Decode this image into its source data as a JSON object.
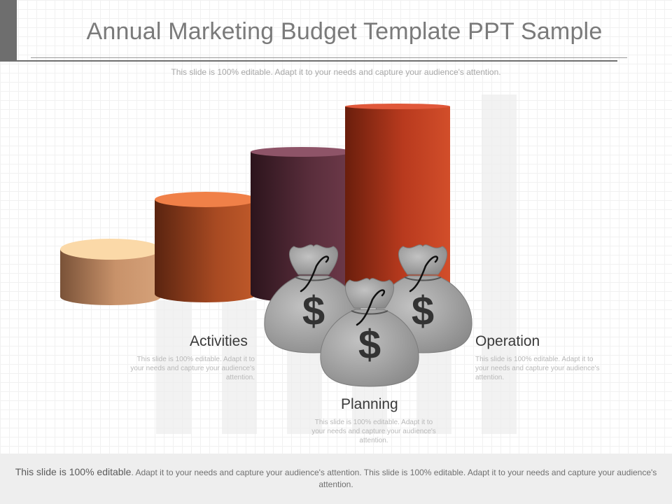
{
  "title": "Annual Marketing Budget Template PPT Sample",
  "subtitle": "This slide is 100% editable. Adapt it to your needs and capture your audience's attention.",
  "items": [
    {
      "label": "Activities",
      "text": "This slide is 100% editable. Adapt it to your needs and capture your audience's attention."
    },
    {
      "label": "Planning",
      "text": "This slide is 100% editable. Adapt it to your needs and capture your audience's attention."
    },
    {
      "label": "Operation",
      "text": "This slide is 100% editable. Adapt it to your needs and capture your audience's attention."
    }
  ],
  "bag_symbol": "$",
  "footer": {
    "lead": "This slide is 100% editable",
    "text": ". Adapt it to your needs and capture your audience's attention. This slide is 100% editable. Adapt it to your needs and capture your audience's attention."
  },
  "colors": {
    "cylinder_1": "#c8926a",
    "cylinder_2": "#a84a22",
    "cylinder_3": "#5a2e3c",
    "cylinder_4": "#b83a1e",
    "bag": "#9a9a9a"
  },
  "icons": [
    "money-bag-icon",
    "dollar-sign-icon"
  ]
}
